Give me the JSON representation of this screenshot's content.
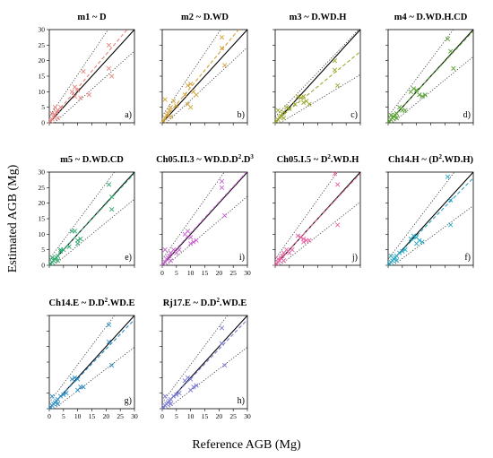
{
  "figure": {
    "ylabel": "Estimated AGB (Mg)",
    "xlabel": "Reference AGB (Mg)"
  },
  "chart_data": [
    {
      "type": "scatter",
      "title": "m1 ~ D",
      "panel_label": "a)",
      "xlim": [
        0,
        30
      ],
      "ylim": [
        0,
        30
      ],
      "xticks": [
        0,
        5,
        10,
        15,
        20,
        25,
        30
      ],
      "yticks": [
        0,
        5,
        10,
        15,
        20,
        25,
        30
      ],
      "show_x_ticklabels": false,
      "show_y_ticklabels": true,
      "color": "#e8837e",
      "fit": {
        "slope": 1.08,
        "intercept": 0.4
      },
      "ci": {
        "upper": {
          "slope": 1.35,
          "intercept": 2.0
        },
        "lower": {
          "slope": 0.82,
          "intercept": -1.5
        }
      },
      "points": [
        [
          0.5,
          0.5
        ],
        [
          1,
          1.2
        ],
        [
          1.5,
          1.8
        ],
        [
          2,
          2.5
        ],
        [
          2.5,
          3.5
        ],
        [
          3,
          4
        ],
        [
          1,
          3
        ],
        [
          2,
          5
        ],
        [
          4,
          5
        ],
        [
          3,
          1.5
        ],
        [
          8,
          10
        ],
        [
          9,
          11.5
        ],
        [
          10,
          10.5
        ],
        [
          11,
          8
        ],
        [
          9,
          8.5
        ],
        [
          12,
          16.5
        ],
        [
          21,
          25
        ],
        [
          21,
          17.5
        ],
        [
          22,
          15
        ],
        [
          14,
          9
        ]
      ]
    },
    {
      "type": "scatter",
      "title": "m2 ~ D.WD",
      "panel_label": "b)",
      "xlim": [
        0,
        30
      ],
      "ylim": [
        0,
        30
      ],
      "xticks": [
        0,
        5,
        10,
        15,
        20,
        25,
        30
      ],
      "yticks": [
        0,
        5,
        10,
        15,
        20,
        25,
        30
      ],
      "show_x_ticklabels": false,
      "show_y_ticklabels": false,
      "color": "#d1a23a",
      "fit": {
        "slope": 1.1,
        "intercept": 0.4
      },
      "ci": {
        "upper": {
          "slope": 1.35,
          "intercept": 2.2
        },
        "lower": {
          "slope": 0.85,
          "intercept": -1.2
        }
      },
      "points": [
        [
          0.5,
          0.6
        ],
        [
          1,
          1.5
        ],
        [
          1.5,
          2.5
        ],
        [
          2,
          3
        ],
        [
          2.5,
          4
        ],
        [
          3,
          5
        ],
        [
          1,
          7.5
        ],
        [
          4,
          7
        ],
        [
          5,
          5.5
        ],
        [
          3,
          2
        ],
        [
          8,
          9
        ],
        [
          9,
          12
        ],
        [
          10,
          12.5
        ],
        [
          11,
          10
        ],
        [
          9,
          6
        ],
        [
          10,
          5
        ],
        [
          12,
          9
        ],
        [
          21,
          27.5
        ],
        [
          21,
          24
        ],
        [
          22,
          18.5
        ]
      ]
    },
    {
      "type": "scatter",
      "title": "m3 ~ D.WD.H",
      "panel_label": "c)",
      "xlim": [
        0,
        30
      ],
      "ylim": [
        0,
        30
      ],
      "xticks": [
        0,
        5,
        10,
        15,
        20,
        25,
        30
      ],
      "yticks": [
        0,
        5,
        10,
        15,
        20,
        25,
        30
      ],
      "show_x_ticklabels": false,
      "show_y_ticklabels": false,
      "color": "#9aa62a",
      "fit": {
        "slope": 0.75,
        "intercept": 0.4
      },
      "ci": {
        "upper": {
          "slope": 0.95,
          "intercept": 2.0
        },
        "lower": {
          "slope": 0.55,
          "intercept": -1.0
        }
      },
      "points": [
        [
          0.5,
          0.5
        ],
        [
          1,
          1
        ],
        [
          1.5,
          1.8
        ],
        [
          2,
          2.2
        ],
        [
          2.5,
          3
        ],
        [
          3,
          3.5
        ],
        [
          1,
          4
        ],
        [
          4,
          5
        ],
        [
          5,
          4.5
        ],
        [
          3,
          1.5
        ],
        [
          8,
          8.5
        ],
        [
          9,
          8
        ],
        [
          10,
          8.5
        ],
        [
          11,
          7
        ],
        [
          10,
          6.5
        ],
        [
          12,
          6
        ],
        [
          21,
          20
        ],
        [
          21,
          17
        ],
        [
          22,
          12
        ],
        [
          7,
          6
        ]
      ]
    },
    {
      "type": "scatter",
      "title": "m4 ~ D.WD.H.CD",
      "panel_label": "d)",
      "xlim": [
        0,
        30
      ],
      "ylim": [
        0,
        30
      ],
      "xticks": [
        0,
        5,
        10,
        15,
        20,
        25,
        30
      ],
      "yticks": [
        0,
        5,
        10,
        15,
        20,
        25,
        30
      ],
      "show_x_ticklabels": false,
      "show_y_ticklabels": false,
      "color": "#55a02e",
      "fit": {
        "slope": 0.98,
        "intercept": 0.2
      },
      "ci": {
        "upper": {
          "slope": 1.22,
          "intercept": 2.0
        },
        "lower": {
          "slope": 0.75,
          "intercept": -1.2
        }
      },
      "points": [
        [
          0.5,
          0.5
        ],
        [
          1,
          1
        ],
        [
          1.5,
          1.5
        ],
        [
          2,
          2
        ],
        [
          2.5,
          2.5
        ],
        [
          3,
          3
        ],
        [
          1,
          2.5
        ],
        [
          4,
          5
        ],
        [
          5,
          4
        ],
        [
          3,
          1.5
        ],
        [
          8,
          10
        ],
        [
          9,
          11
        ],
        [
          10,
          10.5
        ],
        [
          11,
          9
        ],
        [
          12,
          8.5
        ],
        [
          13,
          9
        ],
        [
          21,
          27
        ],
        [
          22,
          23
        ],
        [
          23,
          17.5
        ],
        [
          6,
          4
        ]
      ]
    },
    {
      "type": "scatter",
      "title": "m5 ~ D.WD.CD",
      "panel_label": "e)",
      "xlim": [
        0,
        30
      ],
      "ylim": [
        0,
        30
      ],
      "xticks": [
        0,
        5,
        10,
        15,
        20,
        25,
        30
      ],
      "yticks": [
        0,
        5,
        10,
        15,
        20,
        25,
        30
      ],
      "show_x_ticklabels": false,
      "show_y_ticklabels": true,
      "color": "#2ea86e",
      "fit": {
        "slope": 0.98,
        "intercept": 0.2
      },
      "ci": {
        "upper": {
          "slope": 1.22,
          "intercept": 2.0
        },
        "lower": {
          "slope": 0.75,
          "intercept": -1.2
        }
      },
      "points": [
        [
          0.5,
          0.5
        ],
        [
          1,
          1
        ],
        [
          1.5,
          1.5
        ],
        [
          2,
          2
        ],
        [
          2.5,
          2.5
        ],
        [
          3,
          3
        ],
        [
          1,
          2.5
        ],
        [
          4,
          4.5
        ],
        [
          5,
          5
        ],
        [
          3,
          1.5
        ],
        [
          8,
          11
        ],
        [
          9,
          11
        ],
        [
          10,
          8
        ],
        [
          11,
          8.5
        ],
        [
          10,
          7
        ],
        [
          7,
          6
        ],
        [
          21,
          26
        ],
        [
          22,
          22
        ],
        [
          22,
          18
        ],
        [
          4,
          5
        ]
      ]
    },
    {
      "type": "scatter",
      "title": "Ch05.II.3 ~ WD.D.D",
      "title_sup": "2",
      "title_after_sup": ".D",
      "title_sup2": "3",
      "panel_label": "i)",
      "xlim": [
        0,
        30
      ],
      "ylim": [
        0,
        30
      ],
      "xticks": [
        0,
        5,
        10,
        15,
        20,
        25,
        30
      ],
      "yticks": [
        0,
        5,
        10,
        15,
        20,
        25,
        30
      ],
      "show_x_ticklabels": true,
      "show_y_ticklabels": false,
      "color": "#c75fcf",
      "fit": {
        "slope": 1.0,
        "intercept": 0.3
      },
      "ci": {
        "upper": {
          "slope": 1.28,
          "intercept": 2.0
        },
        "lower": {
          "slope": 0.78,
          "intercept": -1.2
        }
      },
      "points": [
        [
          0.5,
          0.5
        ],
        [
          1,
          1
        ],
        [
          1.5,
          2
        ],
        [
          2,
          2.5
        ],
        [
          2.5,
          3
        ],
        [
          3,
          4
        ],
        [
          1,
          5
        ],
        [
          4,
          5
        ],
        [
          5,
          4
        ],
        [
          3,
          1.5
        ],
        [
          8,
          10
        ],
        [
          9,
          11
        ],
        [
          10,
          9
        ],
        [
          11,
          7.5
        ],
        [
          10,
          7
        ],
        [
          12,
          8
        ],
        [
          21,
          27
        ],
        [
          21,
          25
        ],
        [
          22,
          16
        ],
        [
          6,
          5
        ]
      ]
    },
    {
      "type": "scatter",
      "title": "Ch05.I.5 ~ D",
      "title_sup": "2",
      "title_after_sup": ".WD.H",
      "panel_label": "j)",
      "xlim": [
        0,
        30
      ],
      "ylim": [
        0,
        30
      ],
      "xticks": [
        0,
        5,
        10,
        15,
        20,
        25,
        30
      ],
      "yticks": [
        0,
        5,
        10,
        15,
        20,
        25,
        30
      ],
      "show_x_ticklabels": false,
      "show_y_ticklabels": false,
      "color": "#e8609e",
      "fit": {
        "slope": 0.98,
        "intercept": 0.2
      },
      "ci": {
        "upper": {
          "slope": 1.28,
          "intercept": 2.0
        },
        "lower": {
          "slope": 0.72,
          "intercept": -1.2
        }
      },
      "points": [
        [
          0.5,
          0.5
        ],
        [
          1,
          1
        ],
        [
          1.5,
          1.5
        ],
        [
          2,
          2.5
        ],
        [
          2.5,
          3
        ],
        [
          3,
          4
        ],
        [
          1,
          2
        ],
        [
          4,
          5
        ],
        [
          5,
          4
        ],
        [
          3,
          1.5
        ],
        [
          8,
          9.5
        ],
        [
          9,
          9
        ],
        [
          10,
          8.5
        ],
        [
          11,
          8
        ],
        [
          10,
          7.5
        ],
        [
          12,
          8
        ],
        [
          21,
          29.5
        ],
        [
          22,
          26
        ],
        [
          22,
          13
        ],
        [
          6,
          5
        ]
      ]
    },
    {
      "type": "scatter",
      "title": "Ch14.H ~ (D",
      "title_sup": "2",
      "title_after_sup": ".WD.H)",
      "panel_label": "f)",
      "xlim": [
        0,
        30
      ],
      "ylim": [
        0,
        30
      ],
      "xticks": [
        0,
        5,
        10,
        15,
        20,
        25,
        30
      ],
      "yticks": [
        0,
        5,
        10,
        15,
        20,
        25,
        30
      ],
      "show_x_ticklabels": false,
      "show_y_ticklabels": false,
      "color": "#27a6c3",
      "fit": {
        "slope": 0.93,
        "intercept": 0.2
      },
      "ci": {
        "upper": {
          "slope": 1.2,
          "intercept": 2.0
        },
        "lower": {
          "slope": 0.68,
          "intercept": -1.2
        }
      },
      "points": [
        [
          0.5,
          0.5
        ],
        [
          1,
          1
        ],
        [
          1.5,
          1.5
        ],
        [
          2,
          2
        ],
        [
          2.5,
          2.5
        ],
        [
          3,
          3
        ],
        [
          1,
          3
        ],
        [
          4,
          4
        ],
        [
          5,
          4.5
        ],
        [
          3,
          1.5
        ],
        [
          8,
          8.5
        ],
        [
          9,
          9.5
        ],
        [
          10,
          9
        ],
        [
          11,
          8
        ],
        [
          10,
          7
        ],
        [
          12,
          7.5
        ],
        [
          21,
          28.5
        ],
        [
          22,
          21
        ],
        [
          22,
          13
        ],
        [
          6,
          5
        ]
      ]
    },
    {
      "type": "scatter",
      "title": "Ch14.E ~ D.D",
      "title_sup": "2",
      "title_after_sup": ".WD.E",
      "panel_label": "g)",
      "xlim": [
        0,
        30
      ],
      "ylim": [
        0,
        30
      ],
      "xticks": [
        0,
        5,
        10,
        15,
        20,
        25,
        30
      ],
      "yticks": [
        0,
        5,
        10,
        15,
        20,
        25,
        30
      ],
      "show_x_ticklabels": true,
      "show_y_ticklabels": false,
      "color": "#2a8ec5",
      "fit": {
        "slope": 0.95,
        "intercept": 0.2
      },
      "ci": {
        "upper": {
          "slope": 1.22,
          "intercept": 2.0
        },
        "lower": {
          "slope": 0.7,
          "intercept": -1.2
        }
      },
      "points": [
        [
          0.5,
          0.5
        ],
        [
          1,
          1
        ],
        [
          1.5,
          1.5
        ],
        [
          2,
          2
        ],
        [
          2.5,
          2.5
        ],
        [
          3,
          3
        ],
        [
          1,
          4
        ],
        [
          4,
          4
        ],
        [
          5,
          4.5
        ],
        [
          3,
          1.5
        ],
        [
          8,
          9.5
        ],
        [
          9,
          10
        ],
        [
          10,
          9.5
        ],
        [
          11,
          7
        ],
        [
          10,
          6
        ],
        [
          12,
          7
        ],
        [
          21,
          27
        ],
        [
          21,
          21.5
        ],
        [
          22,
          14
        ],
        [
          6,
          5
        ]
      ]
    },
    {
      "type": "scatter",
      "title": "Rj17.E ~ D.D",
      "title_sup": "2",
      "title_after_sup": ".WD.E",
      "panel_label": "h)",
      "xlim": [
        0,
        30
      ],
      "ylim": [
        0,
        30
      ],
      "xticks": [
        0,
        5,
        10,
        15,
        20,
        25,
        30
      ],
      "yticks": [
        0,
        5,
        10,
        15,
        20,
        25,
        30
      ],
      "show_x_ticklabels": true,
      "show_y_ticklabels": false,
      "color": "#7a7ad6",
      "fit": {
        "slope": 0.95,
        "intercept": 0.2
      },
      "ci": {
        "upper": {
          "slope": 1.22,
          "intercept": 2.0
        },
        "lower": {
          "slope": 0.7,
          "intercept": -1.2
        }
      },
      "points": [
        [
          0.5,
          0.5
        ],
        [
          1,
          1
        ],
        [
          1.5,
          1.5
        ],
        [
          2,
          2
        ],
        [
          2.5,
          2.5
        ],
        [
          3,
          3
        ],
        [
          1,
          4
        ],
        [
          4,
          4
        ],
        [
          5,
          4.5
        ],
        [
          3,
          1.5
        ],
        [
          8,
          9
        ],
        [
          9,
          10
        ],
        [
          10,
          9.5
        ],
        [
          11,
          7
        ],
        [
          10,
          6
        ],
        [
          12,
          7.5
        ],
        [
          21,
          26
        ],
        [
          21,
          21
        ],
        [
          22,
          14
        ],
        [
          6,
          5
        ]
      ]
    }
  ]
}
